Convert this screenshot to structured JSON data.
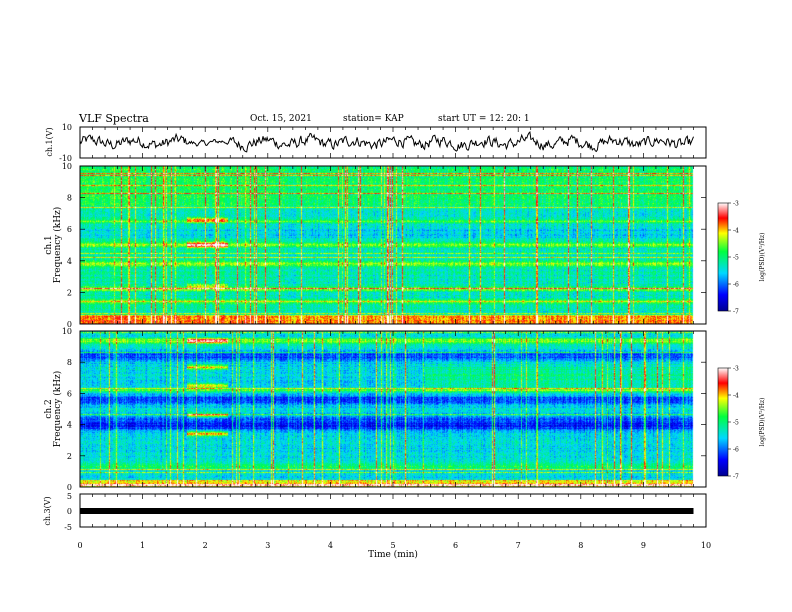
{
  "header": {
    "title": "VLF Spectra",
    "date": "Oct. 15, 2021",
    "station": "station= KAP",
    "start": "start UT =  12: 20: 1"
  },
  "chart_data": [
    {
      "id": "ch1-waveform",
      "type": "line",
      "ylabel": "ch.1(V)",
      "ylim": [
        -10,
        10
      ],
      "y_ticks": [
        "10",
        "-10"
      ],
      "xlim": [
        0,
        10
      ]
    },
    {
      "id": "ch1-spectrogram",
      "type": "heatmap",
      "ylabel": "ch.1 Frequency (kHz)",
      "ylim": [
        0,
        10
      ],
      "y_ticks": [
        "0",
        "2",
        "4",
        "6",
        "8",
        "10"
      ],
      "xlim": [
        0,
        10
      ],
      "colorbar": {
        "label": "log(PSD)(V²/Hz)",
        "range": [
          -7,
          -3
        ],
        "ticks": [
          "-3",
          "-4",
          "-5",
          "-6",
          "-7"
        ]
      }
    },
    {
      "id": "ch2-spectrogram",
      "type": "heatmap",
      "ylabel": "ch.2 Frequency (kHz)",
      "ylim": [
        0,
        10
      ],
      "y_ticks": [
        "0",
        "2",
        "4",
        "6",
        "8",
        "10"
      ],
      "xlim": [
        0,
        10
      ],
      "colorbar": {
        "label": "log(PSD)(V²/Hz)",
        "range": [
          -7,
          -3
        ],
        "ticks": [
          "-3",
          "-4",
          "-5",
          "-6",
          "-7"
        ]
      }
    },
    {
      "id": "ch3-waveform",
      "type": "line",
      "ylabel": "ch.3(V)",
      "ylim": [
        -5,
        5
      ],
      "y_ticks": [
        "5",
        "0",
        "-5"
      ],
      "xlim": [
        0,
        10
      ],
      "xlabel": "Time (min)",
      "x_ticks": [
        "0",
        "1",
        "2",
        "3",
        "4",
        "5",
        "6",
        "7",
        "8",
        "9",
        "10"
      ]
    }
  ]
}
